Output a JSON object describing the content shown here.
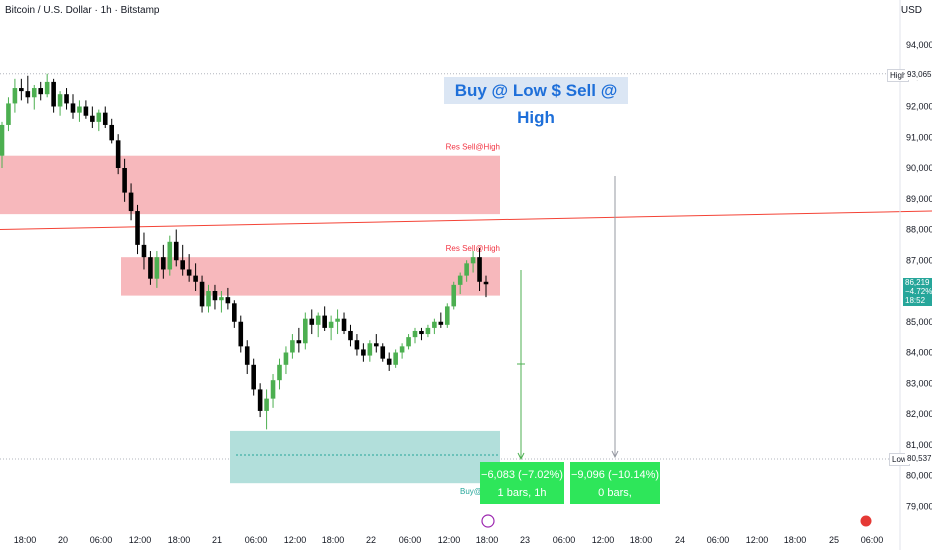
{
  "header": {
    "title": "Bitcoin / U.S. Dollar · 1h · Bitstamp",
    "currency": "USD"
  },
  "banner": {
    "text": "Buy @ Low $ Sell @ High"
  },
  "zones": [
    {
      "label": "Res Sell@High",
      "y_top": 90400,
      "y_bottom": 88500,
      "x_start": 0,
      "x_end": 500,
      "color": "#f7b8bc"
    },
    {
      "label": "Res Sell@High",
      "y_top": 87100,
      "y_bottom": 85850,
      "x_start": 121,
      "x_end": 500,
      "color": "#f7b8bc"
    },
    {
      "label": "Buy@L",
      "y_top": 81450,
      "y_bottom": 79750,
      "x_start": 230,
      "x_end": 500,
      "color": "#b2dfdb"
    }
  ],
  "measures": [
    {
      "line1": "−6,083 (−7.02%)",
      "line2": "1 bars, 1h"
    },
    {
      "line1": "−9,096 (−10.14%)",
      "line2": "0 bars,"
    }
  ],
  "price_tags": {
    "high_label": "High",
    "high_value": "93,065",
    "low_label": "Low",
    "low_value": "80,537",
    "last_price": "86,219",
    "last_change": "−4.72%",
    "countdown": "18:52"
  },
  "colors": {
    "up": "#4caf50",
    "down": "#000000",
    "trend": "#f44336",
    "zone_red": "#f7b8bc",
    "zone_green": "#b2dfdb",
    "measure": "#2ee65a"
  },
  "chart_data": {
    "type": "candlestick",
    "yaxis": {
      "range": [
        78500,
        95000
      ],
      "ticks": [
        94000,
        93000,
        92000,
        91000,
        90000,
        89000,
        88000,
        87000,
        86000,
        85000,
        84000,
        83000,
        82000,
        81000,
        80000,
        79000
      ],
      "tick_labels": [
        "94,000",
        "93,000",
        "92,000",
        "91,000",
        "90,000",
        "89,000",
        "88,000",
        "87,000",
        "86,000",
        "85,000",
        "84,000",
        "83,000",
        "82,000",
        "81,000",
        "80,000",
        "79,000"
      ]
    },
    "xaxis": {
      "labels": [
        "18:00",
        "20",
        "06:00",
        "12:00",
        "18:00",
        "21",
        "06:00",
        "12:00",
        "18:00",
        "22",
        "06:00",
        "12:00",
        "18:00",
        "23",
        "06:00",
        "12:00",
        "18:00",
        "24",
        "06:00",
        "12:00",
        "18:00",
        "25",
        "06:00"
      ]
    },
    "candles": [
      [
        90400,
        91500,
        90000,
        91400
      ],
      [
        91400,
        92300,
        91200,
        92100
      ],
      [
        92100,
        92900,
        91800,
        92600
      ],
      [
        92600,
        92900,
        92200,
        92500
      ],
      [
        92500,
        93000,
        92100,
        92300
      ],
      [
        92300,
        92700,
        91900,
        92600
      ],
      [
        92600,
        92800,
        92200,
        92400
      ],
      [
        92400,
        93065,
        92300,
        92800
      ],
      [
        92800,
        92900,
        91800,
        92000
      ],
      [
        92000,
        92500,
        91700,
        92400
      ],
      [
        92400,
        92600,
        91900,
        92100
      ],
      [
        92100,
        92400,
        91600,
        91800
      ],
      [
        91800,
        92200,
        91500,
        92000
      ],
      [
        92000,
        92200,
        91600,
        91700
      ],
      [
        91700,
        92000,
        91300,
        91500
      ],
      [
        91500,
        91900,
        91200,
        91800
      ],
      [
        91800,
        92000,
        91300,
        91400
      ],
      [
        91400,
        91600,
        90800,
        90900
      ],
      [
        90900,
        91100,
        89800,
        90000
      ],
      [
        90000,
        90300,
        88900,
        89200
      ],
      [
        89200,
        89500,
        88300,
        88600
      ],
      [
        88600,
        88800,
        87200,
        87500
      ],
      [
        87500,
        87900,
        86700,
        87100
      ],
      [
        87100,
        87300,
        86200,
        86400
      ],
      [
        86400,
        87300,
        86100,
        87100
      ],
      [
        87100,
        87500,
        86400,
        86700
      ],
      [
        86700,
        87800,
        86500,
        87600
      ],
      [
        87600,
        88000,
        86800,
        87000
      ],
      [
        87000,
        87500,
        86500,
        86700
      ],
      [
        86700,
        87200,
        86300,
        86500
      ],
      [
        86500,
        86900,
        86000,
        86300
      ],
      [
        86300,
        86500,
        85300,
        85500
      ],
      [
        85500,
        86200,
        85300,
        86000
      ],
      [
        86000,
        86200,
        85400,
        85700
      ],
      [
        85700,
        86000,
        85300,
        85800
      ],
      [
        85800,
        86100,
        85400,
        85600
      ],
      [
        85600,
        85700,
        84800,
        85000
      ],
      [
        85000,
        85200,
        84000,
        84200
      ],
      [
        84200,
        84400,
        83300,
        83600
      ],
      [
        83600,
        83800,
        82600,
        82800
      ],
      [
        82800,
        83000,
        81900,
        82100
      ],
      [
        82100,
        82800,
        81500,
        82500
      ],
      [
        82500,
        83300,
        82200,
        83100
      ],
      [
        83100,
        83800,
        82800,
        83600
      ],
      [
        83600,
        84200,
        83300,
        84000
      ],
      [
        84000,
        84600,
        83800,
        84400
      ],
      [
        84400,
        84800,
        84000,
        84300
      ],
      [
        84300,
        85300,
        84100,
        85100
      ],
      [
        85100,
        85400,
        84600,
        84900
      ],
      [
        84900,
        85300,
        84500,
        85200
      ],
      [
        85200,
        85500,
        84700,
        84800
      ],
      [
        84800,
        85200,
        84400,
        85000
      ],
      [
        85000,
        85400,
        84600,
        85100
      ],
      [
        85100,
        85300,
        84600,
        84700
      ],
      [
        84700,
        84900,
        84200,
        84400
      ],
      [
        84400,
        84600,
        83900,
        84100
      ],
      [
        84100,
        84300,
        83700,
        83900
      ],
      [
        83900,
        84400,
        83700,
        84300
      ],
      [
        84300,
        84600,
        84000,
        84200
      ],
      [
        84200,
        84300,
        83700,
        83800
      ],
      [
        83800,
        84000,
        83400,
        83600
      ],
      [
        83600,
        84100,
        83500,
        84000
      ],
      [
        84000,
        84300,
        83800,
        84200
      ],
      [
        84200,
        84600,
        84100,
        84500
      ],
      [
        84500,
        84800,
        84300,
        84700
      ],
      [
        84700,
        84800,
        84400,
        84600
      ],
      [
        84600,
        84900,
        84500,
        84800
      ],
      [
        84800,
        85100,
        84600,
        85000
      ],
      [
        85000,
        85300,
        84800,
        84900
      ],
      [
        84900,
        85600,
        84800,
        85500
      ],
      [
        85500,
        86300,
        85400,
        86200
      ],
      [
        86200,
        86600,
        85900,
        86500
      ],
      [
        86500,
        87000,
        86300,
        86900
      ],
      [
        86900,
        87300,
        86600,
        87100
      ],
      [
        87100,
        87400,
        86000,
        86300
      ],
      [
        86300,
        86500,
        85800,
        86219
      ]
    ],
    "trendline": {
      "from": [
        0,
        88000
      ],
      "to": [
        932,
        88600
      ]
    },
    "high": 93065,
    "low": 80537,
    "last": 86219
  }
}
